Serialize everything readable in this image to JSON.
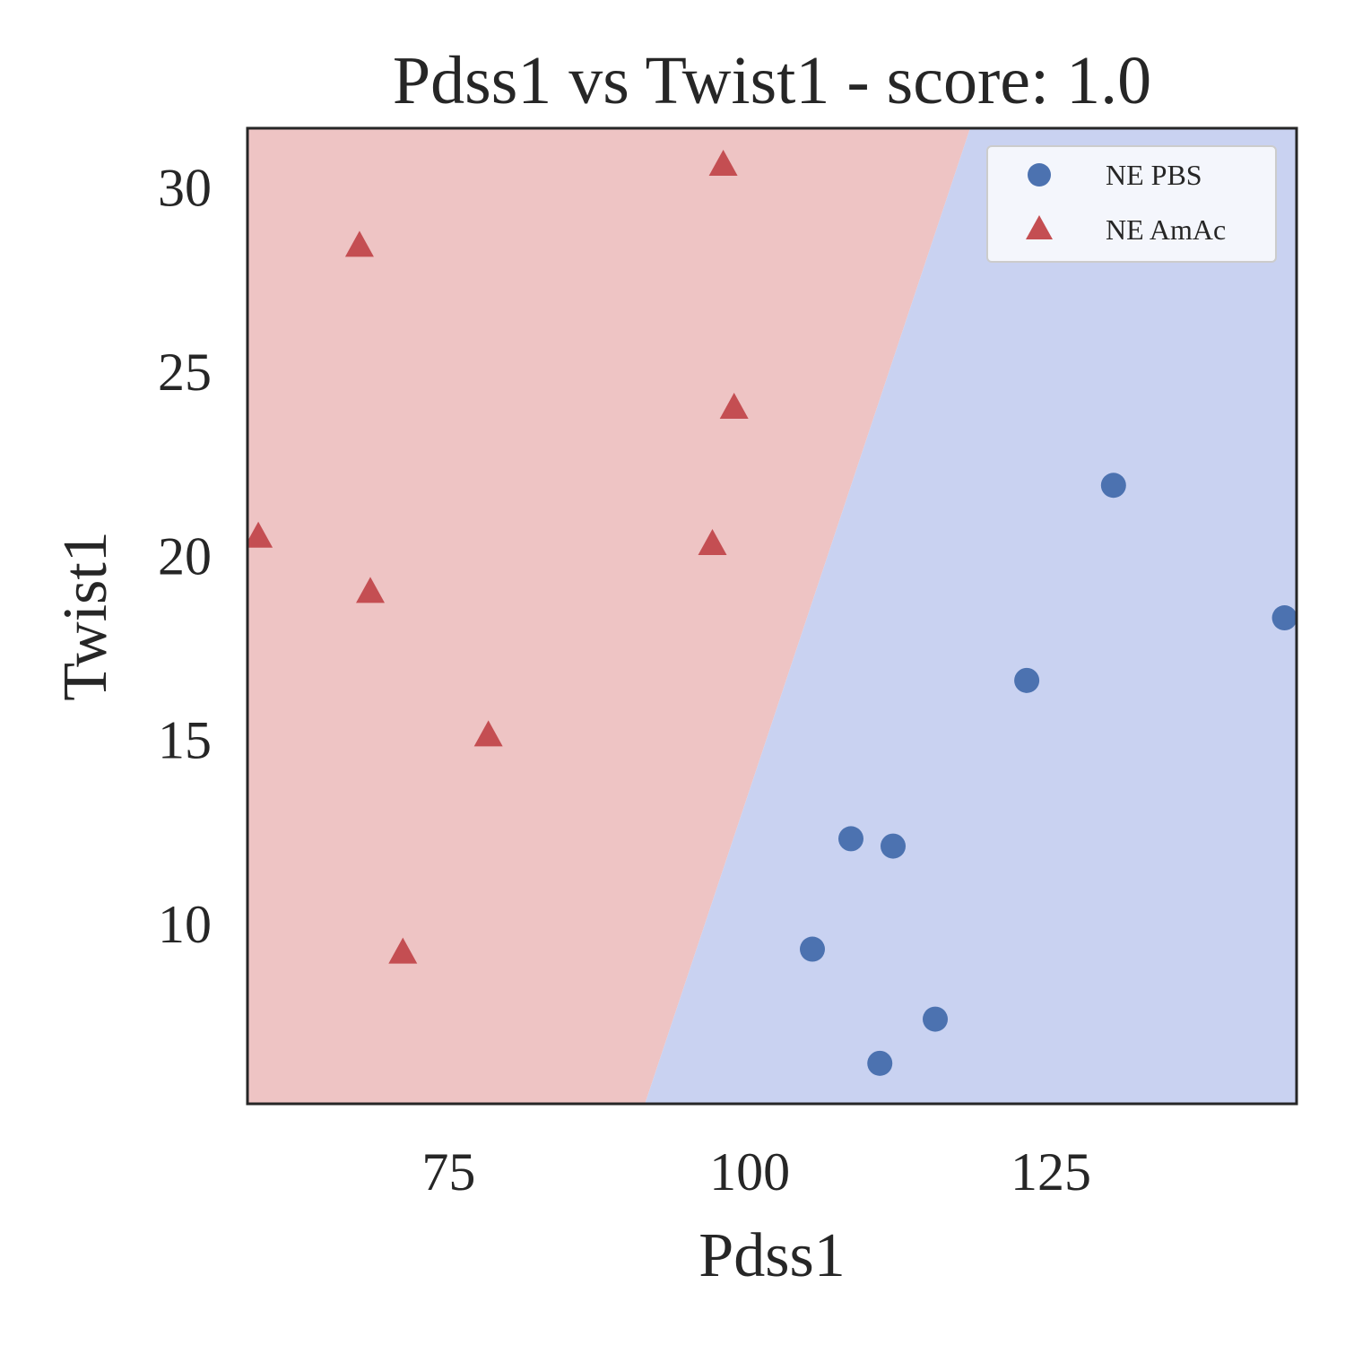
{
  "chart_data": {
    "type": "scatter",
    "title": "Pdss1 vs Twist1 - score: 1.0",
    "xlabel": "Pdss1",
    "ylabel": "Twist1",
    "xlim": [
      58.3,
      145.4
    ],
    "ylim": [
      5.1,
      31.6
    ],
    "x_ticks": [
      75,
      100,
      125
    ],
    "y_ticks": [
      10,
      15,
      20,
      25,
      30
    ],
    "grid": false,
    "legend_position": "top-right",
    "decision_boundary": {
      "points": [
        [
          91.3,
          5.1
        ],
        [
          118.3,
          31.6
        ]
      ],
      "left_region_color": "#eec4c4",
      "right_region_color": "#c9d2f1"
    },
    "series": [
      {
        "name": "NE PBS",
        "marker": "circle",
        "color": "#4c72b0",
        "points": [
          [
            130.2,
            21.9
          ],
          [
            144.4,
            18.3
          ],
          [
            123.0,
            16.6
          ],
          [
            108.4,
            12.3
          ],
          [
            111.9,
            12.1
          ],
          [
            105.2,
            9.3
          ],
          [
            115.4,
            7.4
          ],
          [
            110.8,
            6.2
          ]
        ]
      },
      {
        "name": "NE AmAc",
        "marker": "triangle",
        "color": "#c44e52",
        "points": [
          [
            97.8,
            30.6
          ],
          [
            67.6,
            28.4
          ],
          [
            98.7,
            24.0
          ],
          [
            59.2,
            20.5
          ],
          [
            96.9,
            20.3
          ],
          [
            68.5,
            19.0
          ],
          [
            78.3,
            15.1
          ],
          [
            71.2,
            9.2
          ]
        ]
      }
    ]
  }
}
